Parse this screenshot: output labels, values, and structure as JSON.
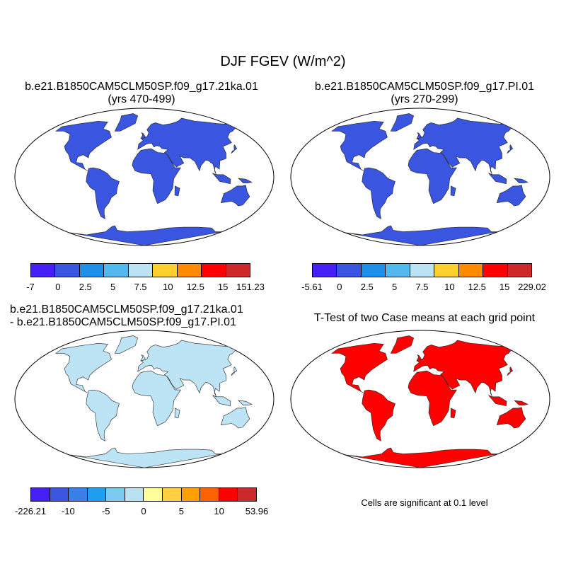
{
  "title": "DJF FGEV (W/m^2)",
  "panels": [
    {
      "id": "panel-a",
      "title_line1": "b.e21.B1850CAM5CLM50SP.f09_g17.21ka.01",
      "title_line2": "(yrs 470-499)",
      "colorbar": {
        "colors": [
          "#4420f5",
          "#3a55e0",
          "#1f8fe8",
          "#52b8f0",
          "#bde4f5",
          "#ffcf30",
          "#ff8a00",
          "#ff0000",
          "#cc2a2a"
        ],
        "labels": [
          "-7",
          "0",
          "2.5",
          "5",
          "7.5",
          "10",
          "12.5",
          "15",
          "151.23"
        ]
      }
    },
    {
      "id": "panel-b",
      "title_line1": "b.e21.B1850CAM5CLM50SP.f09_g17.PI.01",
      "title_line2": "(yrs 270-299)",
      "colorbar": {
        "colors": [
          "#4420f5",
          "#3a55e0",
          "#1f8fe8",
          "#52b8f0",
          "#bde4f5",
          "#ffcf30",
          "#ff8a00",
          "#ff0000",
          "#cc2a2a"
        ],
        "labels": [
          "-5.61",
          "0",
          "2.5",
          "5",
          "7.5",
          "10",
          "12.5",
          "15",
          "229.02"
        ]
      }
    },
    {
      "id": "panel-c",
      "title_line1": "b.e21.B1850CAM5CLM50SP.f09_g17.21ka.01",
      "title_line2": "- b.e21.B1850CAM5CLM50SP.f09_g17.PI.01",
      "colorbar": {
        "colors": [
          "#4420f5",
          "#3a55e0",
          "#3a80e8",
          "#1f9ff0",
          "#7ccaf0",
          "#b8e2f2",
          "#ffff99",
          "#ffd040",
          "#ffa000",
          "#ff6000",
          "#ff0000",
          "#cc2a2a"
        ],
        "labels": [
          "-226.21",
          "-10",
          "-5",
          "0",
          "5",
          "10",
          "53.96"
        ]
      }
    },
    {
      "id": "panel-d",
      "title_line1": "T-Test of two Case means at each grid point",
      "note": "Cells are significant at 0.1 level"
    }
  ],
  "map_colors": {
    "ocean": "#ffffff",
    "panel_a_land": "#3a55e0",
    "panel_b_land": "#3a55e0",
    "panel_c_land": "#bde4f5",
    "panel_d_land": "#ff0000"
  }
}
